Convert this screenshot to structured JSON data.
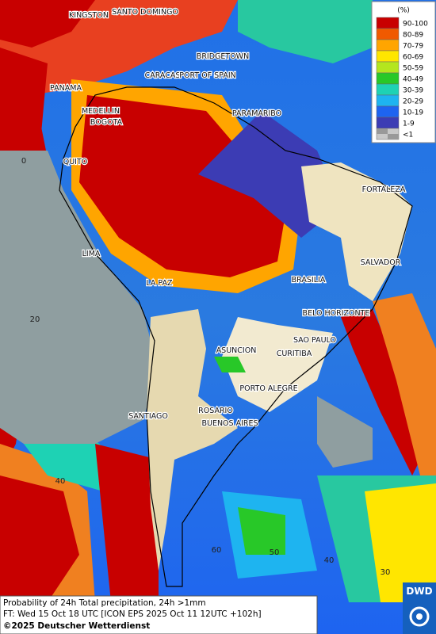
{
  "legend": {
    "title": "(%)",
    "items": [
      {
        "label": "90-100",
        "color": "#c80000"
      },
      {
        "label": "80-89",
        "color": "#f05a00"
      },
      {
        "label": "70-79",
        "color": "#ffa500"
      },
      {
        "label": "60-69",
        "color": "#ffe600"
      },
      {
        "label": "50-59",
        "color": "#b4e61e"
      },
      {
        "label": "40-49",
        "color": "#28c828"
      },
      {
        "label": "30-39",
        "color": "#1ed2b4"
      },
      {
        "label": "20-29",
        "color": "#1eb4f0"
      },
      {
        "label": "10-19",
        "color": "#1e64f0"
      },
      {
        "label": "1-9",
        "color": "#3c3cb4"
      },
      {
        "label": "<1",
        "color": "#c8c8c8"
      }
    ]
  },
  "cities": [
    "KINGSTON",
    "SANTO DOMINGO",
    "BRIDGETOWN",
    "CARACAS",
    "PORT OF SPAIN",
    "PANAMA",
    "PARAMARIBO",
    "MEDELLIN",
    "BOGOTA",
    "QUITO",
    "FORTALEZA",
    "LIMA",
    "SALVADOR",
    "BRASILIA",
    "LA PAZ",
    "BELO HORIZONTE",
    "SAO PAULO",
    "ASUNCION",
    "CURITIBA",
    "PORTO ALEGRE",
    "SANTIAGO",
    "ROSARIO",
    "BUENOS AIRES"
  ],
  "latitude_labels": [
    "0",
    "20",
    "40"
  ],
  "longitude_labels": [
    "60",
    "50",
    "40",
    "30"
  ],
  "caption": {
    "lines": [
      "Probability of 24h Total precipitation, 24h >1mm",
      "FT: Wed 15 Oct 18 UTC [ICON EPS 2025 Oct 11 12UTC +102h]"
    ],
    "copyright": "©2025 Deutscher Wetterdienst"
  },
  "logo": "DWD"
}
